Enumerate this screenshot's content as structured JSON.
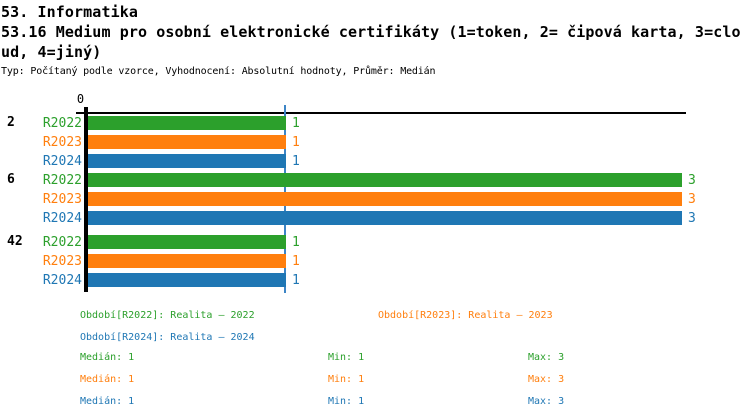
{
  "header": {
    "line1": "53. Informatika",
    "line2": "53.16 Medium pro osobní elektronické certifikáty (1=token, 2= čipová karta, 3=clo",
    "line3": "ud, 4=jiný)",
    "meta": "Typ: Počítaný podle vzorce, Vyhodnocení: Absolutní hodnoty, Průměr: Medián"
  },
  "colors": {
    "axis": "#000000",
    "median_line": "#3d85c6",
    "background": "#ffffff"
  },
  "chart_data": {
    "type": "bar",
    "orientation": "horizontal",
    "title": "53.16 Medium pro osobní elektronické certifikáty (1=token, 2= čipová karta, 3=cloud, 4=jiný)",
    "x_axis": {
      "min": 0,
      "max": 3,
      "tick_labels": [
        "0"
      ]
    },
    "series": [
      "R2022",
      "R2023",
      "R2024"
    ],
    "series_colors": {
      "R2022": "#2ca02c",
      "R2023": "#ff7f0e",
      "R2024": "#1f77b4"
    },
    "groups": [
      {
        "label": "2",
        "bars": [
          {
            "series": "R2022",
            "value": 1
          },
          {
            "series": "R2023",
            "value": 1
          },
          {
            "series": "R2024",
            "value": 1
          }
        ]
      },
      {
        "label": "6",
        "bars": [
          {
            "series": "R2022",
            "value": 3
          },
          {
            "series": "R2023",
            "value": 3
          },
          {
            "series": "R2024",
            "value": 3
          }
        ]
      },
      {
        "label": "42",
        "bars": [
          {
            "series": "R2022",
            "value": 1
          },
          {
            "series": "R2023",
            "value": 1
          },
          {
            "series": "R2024",
            "value": 1
          }
        ]
      }
    ],
    "median_line_value": 1
  },
  "legend": {
    "periods": [
      {
        "series": "R2022",
        "label": "Období[R2022]: Realita – 2022"
      },
      {
        "series": "R2023",
        "label": "Období[R2023]: Realita – 2023"
      },
      {
        "series": "R2024",
        "label": "Období[R2024]: Realita – 2024"
      }
    ],
    "stats": [
      {
        "series": "R2022",
        "median": "Medián: 1",
        "min": "Min: 1",
        "max": "Max: 3"
      },
      {
        "series": "R2023",
        "median": "Medián: 1",
        "min": "Min: 1",
        "max": "Max: 3"
      },
      {
        "series": "R2024",
        "median": "Medián: 1",
        "min": "Min: 1",
        "max": "Max: 3"
      }
    ]
  }
}
